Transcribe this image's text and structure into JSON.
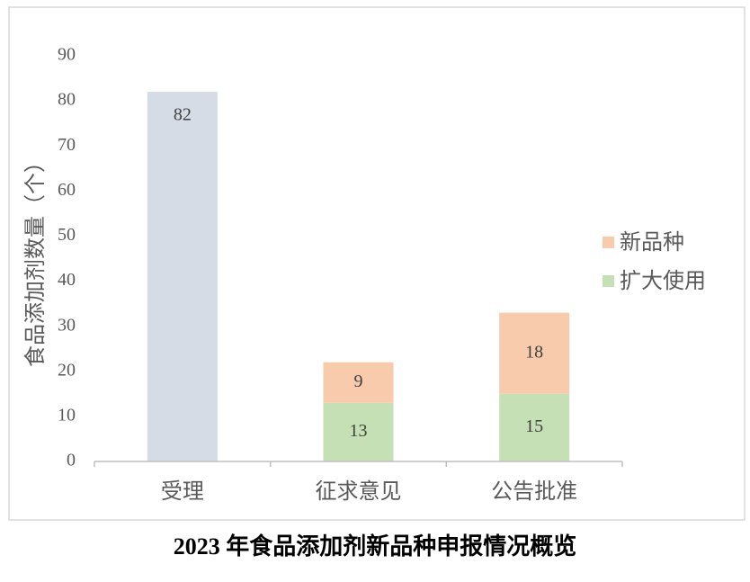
{
  "chart_data": {
    "type": "bar",
    "stacked": true,
    "title": "2023 年食品添加剂新品种申报情况概览",
    "y_label": "食品添加剂数量（个）",
    "categories": [
      "受理",
      "征求意见",
      "公告批准"
    ],
    "series": [
      {
        "color": "#d6dce5",
        "values": [
          82,
          null,
          null
        ]
      },
      {
        "name": "扩大使用",
        "color": "#c5e0b4",
        "values": [
          null,
          13,
          15
        ]
      },
      {
        "name": "新品种",
        "color": "#f8cbad",
        "values": [
          null,
          9,
          18
        ]
      }
    ],
    "ylim": [
      0,
      90
    ],
    "yticks": [
      0,
      10,
      20,
      30,
      40,
      50,
      60,
      70,
      80,
      90
    ],
    "grid": false,
    "legend": "right"
  }
}
